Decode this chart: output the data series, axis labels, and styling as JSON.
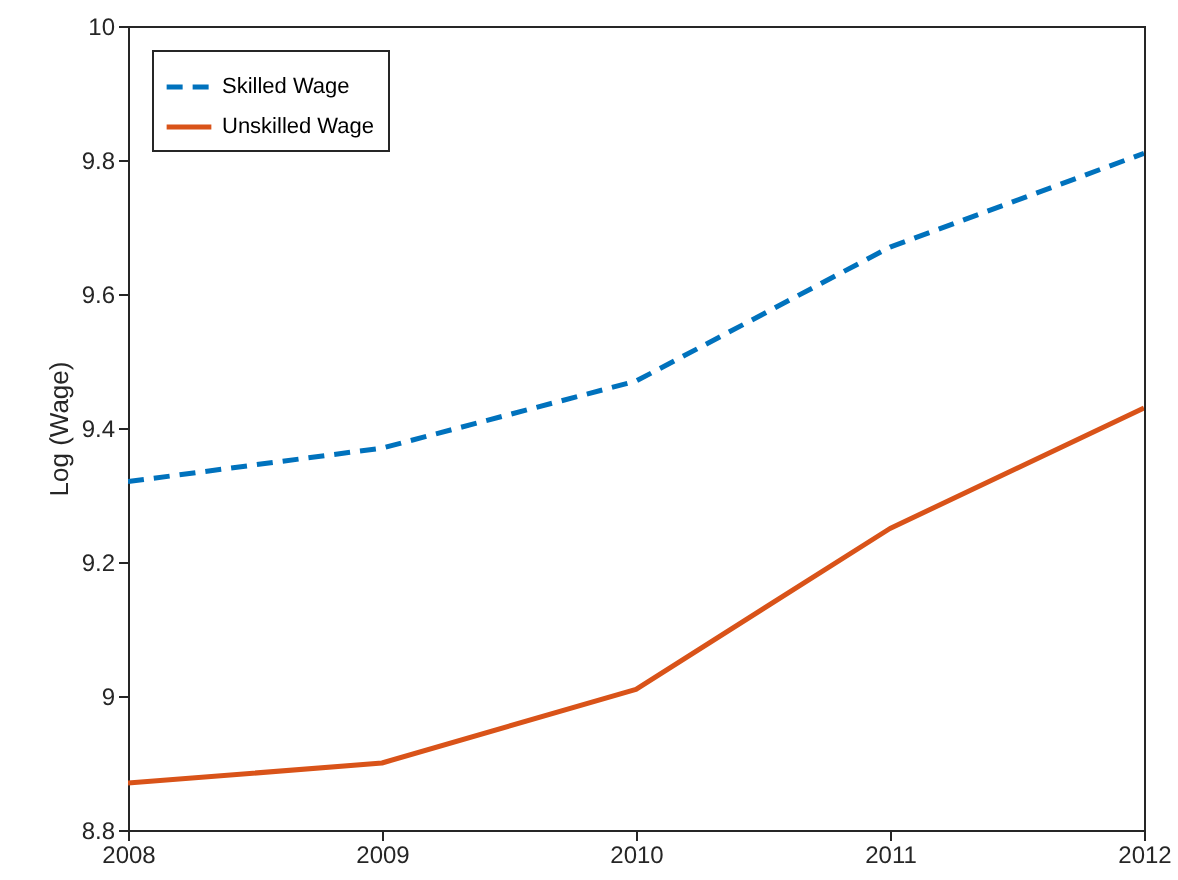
{
  "chart_data": {
    "type": "line",
    "ylabel": "Log (Wage)",
    "x": [
      2008,
      2009,
      2010,
      2011,
      2012
    ],
    "xlim": [
      2008,
      2012
    ],
    "xticks": [
      2008,
      2009,
      2010,
      2011,
      2012
    ],
    "ylim": [
      8.8,
      10
    ],
    "yticks": [
      8.8,
      9,
      9.2,
      9.4,
      9.6,
      9.8,
      10
    ],
    "series": [
      {
        "name": "Skilled Wage",
        "color": "#0072bd",
        "line_style": "dashed",
        "values": [
          9.32,
          9.37,
          9.47,
          9.67,
          9.81
        ]
      },
      {
        "name": "Unskilled Wage",
        "color": "#d95319",
        "line_style": "solid",
        "values": [
          8.87,
          8.9,
          9.01,
          9.25,
          9.43
        ]
      }
    ],
    "grid": false,
    "legend": "top left"
  }
}
